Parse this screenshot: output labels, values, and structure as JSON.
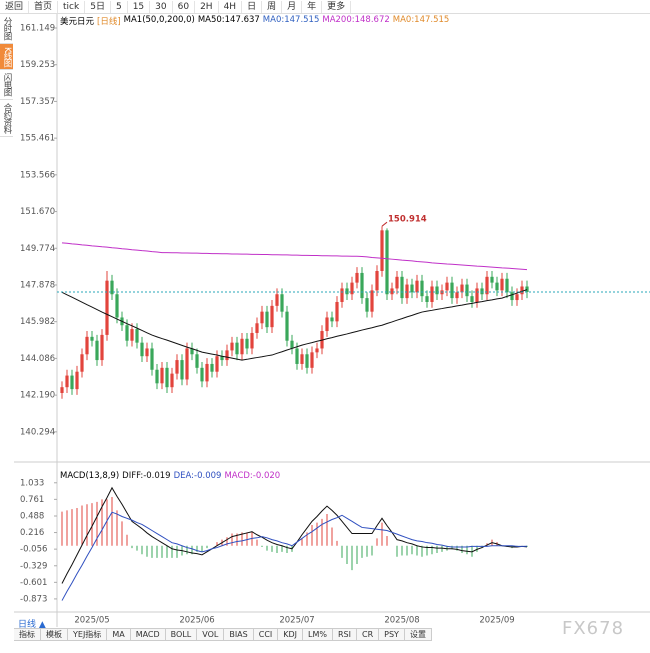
{
  "ui": {
    "toolbar": [
      "返回",
      "首页",
      "tick",
      "5日",
      "5",
      "15",
      "30",
      "60",
      "2H",
      "4H",
      "日",
      "周",
      "月",
      "年",
      "更多"
    ],
    "sidebar": [
      "分时图",
      "K线图",
      "闪电图",
      "合约资料"
    ],
    "period_tab": "日线 ▲",
    "bottom_tabs": [
      "指标",
      "模板",
      "YEJ指标",
      "MA",
      "MACD",
      "BOLL",
      "VOL",
      "BIAS",
      "CCI",
      "KDJ",
      "LM%",
      "RSI",
      "CR",
      "PSY",
      "设置"
    ],
    "watermark": "FX678"
  },
  "chart_data": [
    {
      "type": "candlestick",
      "title": "美元日元",
      "period": "[日线]",
      "indicator": "MA1(50,0,200,0)",
      "legend": [
        {
          "text": "MA50:147.637",
          "color": "#000000"
        },
        {
          "text": "MA0:147.515",
          "color": "#3060c0"
        },
        {
          "text": "MA200:148.672",
          "color": "#c030c8"
        },
        {
          "text": "MA0:147.515",
          "color": "#e08a2a"
        }
      ],
      "up_color": "#e2443c",
      "down_color": "#3aa75a",
      "last_color": "#2aa7b8",
      "categories": [
        null,
        null,
        null,
        null,
        null,
        null,
        "2025/05",
        null,
        null,
        null,
        null,
        null,
        null,
        null,
        null,
        null,
        null,
        null,
        null,
        null,
        null,
        null,
        null,
        null,
        null,
        null,
        null,
        "2025/06",
        null,
        null,
        null,
        null,
        null,
        null,
        null,
        null,
        null,
        null,
        null,
        null,
        null,
        null,
        null,
        null,
        null,
        null,
        null,
        "2025/07",
        null,
        null,
        null,
        null,
        null,
        null,
        null,
        null,
        null,
        null,
        null,
        null,
        null,
        null,
        null,
        null,
        null,
        null,
        null,
        null,
        "2025/08",
        null,
        null,
        null,
        null,
        null,
        null,
        null,
        null,
        null,
        null,
        null,
        null,
        null,
        null,
        null,
        null,
        null,
        null,
        "2025/09",
        null,
        null,
        null,
        null,
        null,
        null
      ],
      "open": [
        142.3,
        142.6,
        143.2,
        142.5,
        143.4,
        144.3,
        145.2,
        145.0,
        144.0,
        145.3,
        148.1,
        147.4,
        146.2,
        145.8,
        145.0,
        145.6,
        144.9,
        144.2,
        144.6,
        143.5,
        142.8,
        143.6,
        142.6,
        143.3,
        144.0,
        143.0,
        144.6,
        144.3,
        143.6,
        142.9,
        143.8,
        143.4,
        144.2,
        144.0,
        144.5,
        144.9,
        144.3,
        145.1,
        144.6,
        145.4,
        145.9,
        146.5,
        145.7,
        146.8,
        147.4,
        146.5,
        145.0,
        144.6,
        143.8,
        144.3,
        143.6,
        144.4,
        144.6,
        145.5,
        146.2,
        146.0,
        147.0,
        147.7,
        147.4,
        148.0,
        148.5,
        147.2,
        146.5,
        147.6,
        148.6,
        150.7,
        147.4,
        147.7,
        148.3,
        147.2,
        147.9,
        147.5,
        148.1,
        147.3,
        147.0,
        147.8,
        147.4,
        147.6,
        148.0,
        147.2,
        147.5,
        147.9,
        147.3,
        147.0,
        147.7,
        147.4,
        148.3,
        148.0,
        147.6,
        148.2,
        147.5,
        147.1,
        147.4,
        147.8
      ],
      "high": [
        142.9,
        143.5,
        143.5,
        143.7,
        144.6,
        145.5,
        145.5,
        145.3,
        145.6,
        148.6,
        148.4,
        147.7,
        146.5,
        146.1,
        145.9,
        145.9,
        145.2,
        144.9,
        144.9,
        143.8,
        143.9,
        143.9,
        143.6,
        144.3,
        144.3,
        144.9,
        144.9,
        144.6,
        143.9,
        144.1,
        144.1,
        144.5,
        144.5,
        144.8,
        145.2,
        145.2,
        145.4,
        145.4,
        145.7,
        146.2,
        146.8,
        146.8,
        147.1,
        147.7,
        147.7,
        146.8,
        145.3,
        144.9,
        144.6,
        144.6,
        144.7,
        144.9,
        145.8,
        146.5,
        146.5,
        147.3,
        148.0,
        148.0,
        148.3,
        148.8,
        148.8,
        147.5,
        147.9,
        148.9,
        150.914,
        150.8,
        148.0,
        148.6,
        148.6,
        148.2,
        148.2,
        148.4,
        148.4,
        147.6,
        148.1,
        148.1,
        147.9,
        148.3,
        148.3,
        147.8,
        148.2,
        148.2,
        147.6,
        148.0,
        148.0,
        148.6,
        148.6,
        148.3,
        148.5,
        148.5,
        147.8,
        147.7,
        148.1,
        148.1
      ],
      "low": [
        142.0,
        142.3,
        142.2,
        142.2,
        143.1,
        144.0,
        144.7,
        143.7,
        143.7,
        145.0,
        147.1,
        145.9,
        145.5,
        144.7,
        144.7,
        144.6,
        143.9,
        143.9,
        143.2,
        142.5,
        142.5,
        142.3,
        142.3,
        143.0,
        142.7,
        142.7,
        144.0,
        143.3,
        142.6,
        142.6,
        143.1,
        143.1,
        143.7,
        143.7,
        144.2,
        144.0,
        144.0,
        144.3,
        144.3,
        145.1,
        145.6,
        145.4,
        145.4,
        146.5,
        146.2,
        144.7,
        144.3,
        143.5,
        143.5,
        143.3,
        143.3,
        144.1,
        144.3,
        145.2,
        145.7,
        145.7,
        146.7,
        147.1,
        147.1,
        147.7,
        146.9,
        146.2,
        146.2,
        147.3,
        148.3,
        147.1,
        147.1,
        147.4,
        146.9,
        146.9,
        147.2,
        147.2,
        147.0,
        146.7,
        146.7,
        147.1,
        147.1,
        147.3,
        146.9,
        146.9,
        147.2,
        147.0,
        146.7,
        146.7,
        147.1,
        147.1,
        147.7,
        147.3,
        147.3,
        147.2,
        146.8,
        146.8,
        147.1,
        147.2
      ],
      "close": [
        142.6,
        143.2,
        142.5,
        143.4,
        144.3,
        145.2,
        145.0,
        144.0,
        145.3,
        148.1,
        147.4,
        146.2,
        145.8,
        145.0,
        145.6,
        144.9,
        144.2,
        144.6,
        143.5,
        142.8,
        143.6,
        142.6,
        143.3,
        144.0,
        143.0,
        144.6,
        144.3,
        143.6,
        142.9,
        143.8,
        143.4,
        144.2,
        144.0,
        144.5,
        144.9,
        144.3,
        145.1,
        144.6,
        145.4,
        145.9,
        146.5,
        145.7,
        146.8,
        147.4,
        146.5,
        145.0,
        144.6,
        143.8,
        144.3,
        143.6,
        144.4,
        144.6,
        145.5,
        146.2,
        146.0,
        147.0,
        147.7,
        147.4,
        148.0,
        148.5,
        147.2,
        146.5,
        147.6,
        148.6,
        150.7,
        147.4,
        147.7,
        148.3,
        147.2,
        147.9,
        147.5,
        148.1,
        147.3,
        147.0,
        147.8,
        147.4,
        147.6,
        148.0,
        147.2,
        147.5,
        147.9,
        147.3,
        147.0,
        147.7,
        147.4,
        148.3,
        148.0,
        147.6,
        148.2,
        147.5,
        147.1,
        147.4,
        147.8,
        147.515
      ],
      "series": [
        {
          "name": "MA50",
          "color": "#111111",
          "values": [
            147.5,
            147.37,
            147.25,
            147.12,
            146.99,
            146.86,
            146.74,
            146.61,
            146.48,
            146.36,
            146.24,
            146.12,
            146.0,
            145.88,
            145.77,
            145.65,
            145.53,
            145.41,
            145.29,
            145.2,
            145.11,
            145.03,
            144.94,
            144.85,
            144.76,
            144.67,
            144.59,
            144.5,
            144.41,
            144.36,
            144.31,
            144.26,
            144.2,
            144.15,
            144.1,
            144.05,
            144.0,
            144.04,
            144.09,
            144.13,
            144.17,
            144.22,
            144.26,
            144.35,
            144.43,
            144.52,
            144.6,
            144.69,
            144.77,
            144.84,
            144.9,
            144.97,
            145.03,
            145.1,
            145.16,
            145.23,
            145.29,
            145.35,
            145.42,
            145.48,
            145.55,
            145.61,
            145.67,
            145.74,
            145.8,
            145.89,
            145.97,
            146.06,
            146.14,
            146.23,
            146.31,
            146.4,
            146.48,
            146.53,
            146.57,
            146.62,
            146.66,
            146.71,
            146.75,
            146.8,
            146.84,
            146.89,
            146.93,
            146.98,
            147.02,
            147.07,
            147.11,
            147.16,
            147.2,
            147.29,
            147.37,
            147.46,
            147.55,
            147.637
          ]
        },
        {
          "name": "MA200",
          "color": "#c030c8",
          "values": [
            150.05,
            150.03,
            150.0,
            149.98,
            149.95,
            149.93,
            149.9,
            149.88,
            149.85,
            149.83,
            149.8,
            149.78,
            149.75,
            149.73,
            149.7,
            149.68,
            149.65,
            149.63,
            149.6,
            149.58,
            149.55,
            149.55,
            149.54,
            149.54,
            149.53,
            149.53,
            149.52,
            149.52,
            149.51,
            149.51,
            149.5,
            149.5,
            149.49,
            149.49,
            149.48,
            149.48,
            149.47,
            149.47,
            149.46,
            149.46,
            149.45,
            149.45,
            149.44,
            149.44,
            149.43,
            149.43,
            149.42,
            149.42,
            149.41,
            149.41,
            149.4,
            149.4,
            149.39,
            149.39,
            149.38,
            149.38,
            149.37,
            149.37,
            149.36,
            149.36,
            149.35,
            149.33,
            149.3,
            149.28,
            149.26,
            149.23,
            149.21,
            149.19,
            149.16,
            149.14,
            149.12,
            149.09,
            149.07,
            149.05,
            149.02,
            149.0,
            148.98,
            148.96,
            148.95,
            148.93,
            148.91,
            148.89,
            148.87,
            148.85,
            148.84,
            148.82,
            148.8,
            148.78,
            148.76,
            148.75,
            148.73,
            148.71,
            148.69,
            148.672
          ]
        }
      ],
      "ylim": [
        138.84,
        161.82
      ],
      "yticks": [
        161.149,
        159.253,
        157.357,
        155.461,
        153.566,
        {
          "value": 151.67,
          "label": "151.670"
        },
        149.774,
        147.878,
        145.982,
        144.086,
        {
          "value": 142.19,
          "label": "142.190"
        },
        140.294
      ]
    },
    {
      "type": "macd",
      "title": "MACD(13,8,9)",
      "series": [
        {
          "name": "DIFF:-0.019",
          "color": "#111111",
          "values": [
            -0.62,
            -0.46,
            -0.31,
            -0.15,
            0.01,
            0.17,
            0.32,
            0.48,
            0.64,
            0.79,
            0.95,
            0.81,
            0.68,
            0.54,
            0.4,
            0.34,
            0.28,
            0.21,
            0.15,
            0.1,
            0.05,
            0.0,
            -0.05,
            -0.07,
            -0.08,
            -0.1,
            -0.12,
            -0.13,
            -0.15,
            -0.1,
            -0.05,
            0.0,
            0.05,
            0.1,
            0.15,
            0.17,
            0.19,
            0.21,
            0.23,
            0.18,
            0.14,
            0.09,
            0.05,
            0.02,
            0.0,
            -0.03,
            -0.05,
            0.06,
            0.18,
            0.29,
            0.4,
            0.48,
            0.57,
            0.65,
            0.58,
            0.5,
            0.4,
            0.3,
            0.2,
            0.2,
            0.2,
            0.2,
            0.2,
            0.33,
            0.45,
            0.33,
            0.22,
            0.1,
            0.08,
            0.05,
            0.03,
            0.0,
            -0.02,
            -0.03,
            -0.03,
            -0.04,
            -0.04,
            -0.05,
            -0.05,
            -0.06,
            -0.08,
            -0.09,
            -0.1,
            -0.06,
            -0.03,
            0.01,
            0.05,
            0.03,
            0.0,
            -0.01,
            -0.02,
            -0.02,
            -0.01,
            -0.019
          ]
        },
        {
          "name": "DEA:-0.009",
          "color": "#3050c0",
          "values": [
            -0.9,
            -0.75,
            -0.61,
            -0.46,
            -0.32,
            -0.17,
            -0.03,
            0.12,
            0.26,
            0.41,
            0.55,
            0.52,
            0.48,
            0.45,
            0.42,
            0.38,
            0.35,
            0.3,
            0.25,
            0.2,
            0.15,
            0.1,
            0.05,
            0.03,
            0.0,
            -0.03,
            -0.05,
            -0.08,
            -0.1,
            -0.08,
            -0.05,
            -0.03,
            0.0,
            0.03,
            0.05,
            0.07,
            0.08,
            0.1,
            0.12,
            0.13,
            0.15,
            0.13,
            0.1,
            0.08,
            0.05,
            0.03,
            0.0,
            0.06,
            0.12,
            0.18,
            0.23,
            0.29,
            0.35,
            0.39,
            0.43,
            0.46,
            0.5,
            0.45,
            0.4,
            0.35,
            0.3,
            0.29,
            0.28,
            0.27,
            0.26,
            0.25,
            0.22,
            0.19,
            0.16,
            0.13,
            0.1,
            0.08,
            0.07,
            0.05,
            0.04,
            0.02,
            0.01,
            -0.01,
            -0.02,
            -0.02,
            -0.02,
            -0.02,
            -0.01,
            -0.01,
            -0.01,
            -0.01,
            0.0,
            0.0,
            0.0,
            0.0,
            0.0,
            -0.01,
            -0.01,
            -0.009
          ]
        }
      ],
      "histogram": {
        "name": "MACD:-0.020",
        "up_color": "#e2443c",
        "down_color": "#3aa75a",
        "values": [
          0.56,
          0.58,
          0.6,
          0.62,
          0.66,
          0.68,
          0.7,
          0.72,
          0.76,
          0.76,
          0.8,
          0.58,
          0.4,
          0.18,
          -0.04,
          -0.08,
          -0.14,
          -0.18,
          -0.2,
          -0.2,
          -0.2,
          -0.2,
          -0.2,
          -0.2,
          -0.16,
          -0.14,
          -0.14,
          -0.1,
          -0.1,
          -0.04,
          0.0,
          0.06,
          0.1,
          0.14,
          0.2,
          0.2,
          0.22,
          0.22,
          0.22,
          0.1,
          -0.02,
          -0.08,
          -0.1,
          -0.12,
          -0.1,
          -0.12,
          -0.1,
          0.0,
          0.12,
          0.22,
          0.34,
          0.38,
          0.44,
          0.52,
          0.3,
          0.08,
          -0.2,
          -0.3,
          -0.4,
          -0.3,
          -0.2,
          -0.18,
          -0.16,
          0.12,
          0.38,
          0.16,
          0.0,
          -0.18,
          -0.16,
          -0.16,
          -0.14,
          -0.16,
          -0.18,
          -0.16,
          -0.14,
          -0.12,
          -0.1,
          -0.08,
          -0.06,
          -0.08,
          -0.12,
          -0.14,
          -0.18,
          -0.1,
          -0.04,
          0.04,
          0.1,
          0.06,
          0.0,
          -0.02,
          -0.04,
          -0.02,
          0.0,
          -0.02
        ]
      },
      "ylim": [
        -1.055,
        1.21
      ],
      "yticks": [
        1.033,
        0.761,
        0.488,
        0.216,
        -0.056,
        -0.329,
        -0.601,
        -0.873
      ]
    }
  ]
}
